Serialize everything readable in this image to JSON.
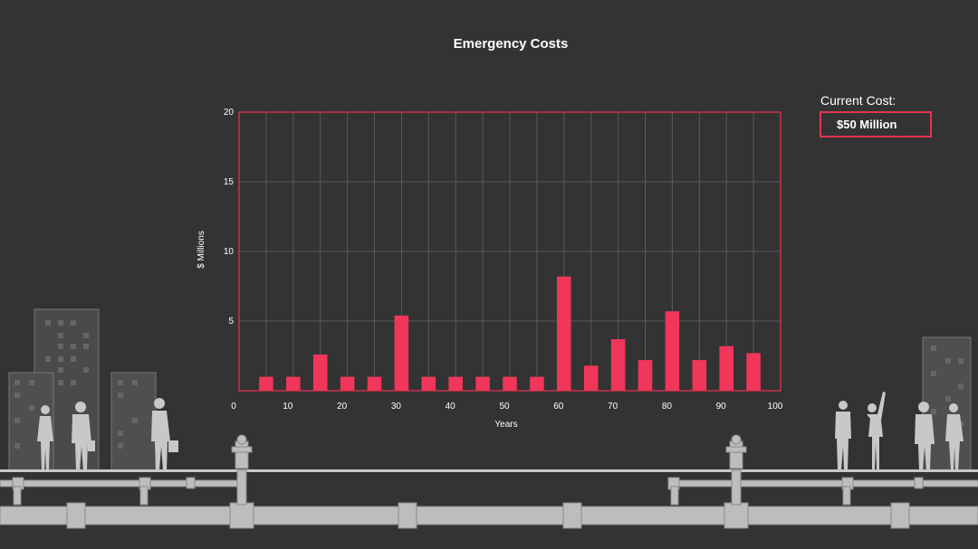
{
  "title": "Emergency Costs",
  "cost_panel": {
    "label": "Current Cost:",
    "value": "$50 Million"
  },
  "colors": {
    "accent": "#f0365a",
    "frame": "#e8334f",
    "background": "#333333",
    "grid": "#5a5a5a",
    "silhouette": "#c8c8c8"
  },
  "chart_data": {
    "type": "bar",
    "x": [
      5,
      10,
      15,
      20,
      25,
      30,
      35,
      40,
      45,
      50,
      55,
      60,
      65,
      70,
      75,
      80,
      85,
      90,
      95
    ],
    "values": [
      1.0,
      1.0,
      2.6,
      1.0,
      1.0,
      5.4,
      1.0,
      1.0,
      1.0,
      1.0,
      1.0,
      8.2,
      1.8,
      3.7,
      2.2,
      5.7,
      2.2,
      3.2,
      2.7
    ],
    "xlabel": "Years",
    "ylabel": "$ Millions",
    "xlim": [
      0,
      100
    ],
    "ylim": [
      0,
      20
    ],
    "x_ticks": [
      0,
      10,
      20,
      30,
      40,
      50,
      60,
      70,
      80,
      90,
      100
    ],
    "y_ticks": [
      20,
      15,
      10,
      5
    ],
    "grid": true
  }
}
